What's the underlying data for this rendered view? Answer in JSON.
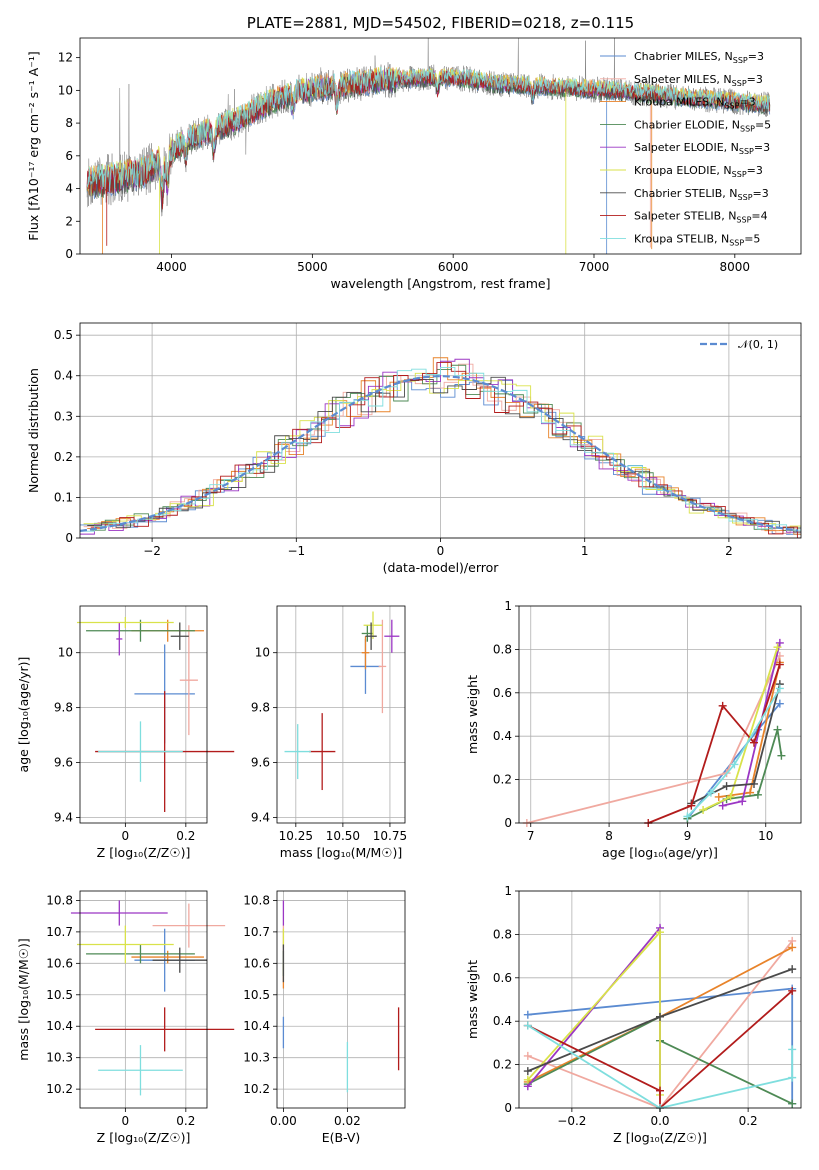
{
  "colors": {
    "Chabrier MILES": "#5b8bd1",
    "Salpeter MILES": "#f0a9a0",
    "Kroupa MILES": "#e8832a",
    "Chabrier ELODIE": "#4e8a55",
    "Salpeter ELODIE": "#9b36c4",
    "Kroupa ELODIE": "#d9e24a",
    "Chabrier STELIB": "#4a4a4a",
    "Salpeter STELIB": "#b21c1c",
    "Kroupa STELIB": "#7fdede",
    "data": "#808080",
    "gauss": "#5b8bd1"
  },
  "chart_data": [
    {
      "id": "spectrum",
      "type": "line",
      "title": "PLATE=2881, MJD=54502, FIBERID=0218, z=0.115",
      "xlabel": "wavelength [Angstrom, rest frame]",
      "ylabel": "Flux [fλ10⁻¹⁷ erg cm⁻² s⁻¹ A⁻¹]",
      "xlim": [
        3350,
        8470
      ],
      "ylim": [
        0,
        13.2
      ],
      "xticks": [
        4000,
        5000,
        6000,
        7000,
        8000
      ],
      "yticks": [
        0,
        2,
        4,
        6,
        8,
        10,
        12
      ],
      "grid": false,
      "legend_position": "upper-right",
      "continuum": [
        [
          3400,
          4.3
        ],
        [
          3600,
          4.6
        ],
        [
          3800,
          5.0
        ],
        [
          3950,
          5.8
        ],
        [
          4100,
          7.0
        ],
        [
          4300,
          7.6
        ],
        [
          4500,
          8.3
        ],
        [
          4700,
          9.3
        ],
        [
          4900,
          9.9
        ],
        [
          5100,
          10.2
        ],
        [
          5300,
          10.4
        ],
        [
          5500,
          10.6
        ],
        [
          5700,
          10.7
        ],
        [
          5900,
          10.8
        ],
        [
          6100,
          10.7
        ],
        [
          6300,
          10.4
        ],
        [
          6500,
          10.3
        ],
        [
          6700,
          10.2
        ],
        [
          6900,
          10.1
        ],
        [
          7100,
          10.0
        ],
        [
          7400,
          9.8
        ],
        [
          7700,
          9.5
        ],
        [
          8000,
          9.3
        ],
        [
          8250,
          9.1
        ]
      ],
      "series": [
        {
          "name": "Chabrier MILES",
          "nssp": "3"
        },
        {
          "name": "Salpeter MILES",
          "nssp": "3"
        },
        {
          "name": "Kroupa MILES",
          "nssp": "3"
        },
        {
          "name": "Chabrier ELODIE",
          "nssp": "5"
        },
        {
          "name": "Salpeter ELODIE",
          "nssp": "3"
        },
        {
          "name": "Kroupa ELODIE",
          "nssp": "3"
        },
        {
          "name": "Chabrier STELIB",
          "nssp": "3"
        },
        {
          "name": "Salpeter STELIB",
          "nssp": "4"
        },
        {
          "name": "Kroupa STELIB",
          "nssp": "5"
        }
      ]
    },
    {
      "id": "residuals",
      "type": "line",
      "xlabel": "(data-model)/error",
      "ylabel": "Normed distribution",
      "xlim": [
        -2.5,
        2.5
      ],
      "ylim": [
        0,
        0.53
      ],
      "xticks": [
        -2,
        -1,
        0,
        1,
        2
      ],
      "yticks": [
        0.0,
        0.1,
        0.2,
        0.3,
        0.4,
        0.5
      ],
      "grid": true,
      "legend_position": "upper-right",
      "legend_label": "𝒩(0, 1)",
      "bin_width": 0.1
    },
    {
      "id": "age-Z",
      "type": "scatter",
      "xlabel": "Z [log₁₀(Z/Z☉)]",
      "ylabel": "age  [log₁₀(age/yr)]",
      "xlim": [
        -0.15,
        0.27
      ],
      "ylim": [
        9.38,
        10.17
      ],
      "xticks": [
        0.0,
        0.2
      ],
      "yticks": [
        9.4,
        9.6,
        9.8,
        10.0
      ],
      "grid": true,
      "points": [
        {
          "series": "Chabrier MILES",
          "x": 0.13,
          "xerr": 0.1,
          "y": 9.85,
          "yerr": 0.18
        },
        {
          "series": "Salpeter MILES",
          "x": 0.21,
          "xerr": 0.03,
          "y": 9.9,
          "yerr": 0.2
        },
        {
          "series": "Kroupa MILES",
          "x": 0.14,
          "xerr": 0.12,
          "y": 10.08,
          "yerr": 0.04
        },
        {
          "series": "Chabrier ELODIE",
          "x": 0.05,
          "xerr": 0.18,
          "y": 10.08,
          "yerr": 0.04
        },
        {
          "series": "Salpeter ELODIE",
          "x": -0.02,
          "xerr": 0.01,
          "y": 10.05,
          "yerr": 0.06
        },
        {
          "series": "Kroupa ELODIE",
          "x": 0.0,
          "xerr": 0.16,
          "y": 10.11,
          "yerr": 0.02
        },
        {
          "series": "Chabrier STELIB",
          "x": 0.18,
          "xerr": 0.03,
          "y": 10.06,
          "yerr": 0.05
        },
        {
          "series": "Salpeter STELIB",
          "x": 0.13,
          "xerr": 0.23,
          "y": 9.64,
          "yerr": 0.22
        },
        {
          "series": "Kroupa STELIB",
          "x": 0.05,
          "xerr": 0.14,
          "y": 9.64,
          "yerr": 0.11
        }
      ]
    },
    {
      "id": "age-mass",
      "type": "scatter",
      "xlabel": "mass [log₁₀(M/M☉)]",
      "xlim": [
        10.15,
        10.83
      ],
      "ylim": [
        9.38,
        10.17
      ],
      "xticks": [
        10.25,
        10.5,
        10.75
      ],
      "xtick_labels": [
        "10.25",
        "10.50",
        "10.75"
      ],
      "yticks": [
        9.4,
        9.6,
        9.8,
        10.0
      ],
      "grid": true,
      "points": [
        {
          "series": "Chabrier MILES",
          "x": 10.62,
          "xerr": 0.08,
          "y": 9.95,
          "yerr": 0.1
        },
        {
          "series": "Salpeter MILES",
          "x": 10.71,
          "xerr": 0.02,
          "y": 9.95,
          "yerr": 0.17
        },
        {
          "series": "Kroupa MILES",
          "x": 10.62,
          "xerr": 0.02,
          "y": 10.0,
          "yerr": 0.06
        },
        {
          "series": "Chabrier ELODIE",
          "x": 10.63,
          "xerr": 0.03,
          "y": 10.07,
          "yerr": 0.03
        },
        {
          "series": "Salpeter ELODIE",
          "x": 10.76,
          "xerr": 0.04,
          "y": 10.06,
          "yerr": 0.06
        },
        {
          "series": "Kroupa ELODIE",
          "x": 10.66,
          "xerr": 0.05,
          "y": 10.1,
          "yerr": 0.05
        },
        {
          "series": "Chabrier STELIB",
          "x": 10.65,
          "xerr": 0.03,
          "y": 10.06,
          "yerr": 0.05
        },
        {
          "series": "Salpeter STELIB",
          "x": 10.39,
          "xerr": 0.07,
          "y": 9.64,
          "yerr": 0.14
        },
        {
          "series": "Kroupa STELIB",
          "x": 10.26,
          "xerr": 0.07,
          "y": 9.64,
          "yerr": 0.1
        }
      ]
    },
    {
      "id": "weight-age",
      "type": "line",
      "xlabel": "age  [log₁₀(age/yr)]",
      "ylabel": "mass weight",
      "xlim": [
        6.85,
        10.45
      ],
      "ylim": [
        0,
        1.0
      ],
      "xticks": [
        7,
        8,
        9,
        10
      ],
      "yticks": [
        0.0,
        0.2,
        0.4,
        0.6,
        0.8,
        1.0
      ],
      "grid": true,
      "series": [
        {
          "name": "Chabrier MILES",
          "x": [
            9.0,
            9.9,
            10.18
          ],
          "y": [
            0.02,
            0.43,
            0.55
          ]
        },
        {
          "name": "Salpeter MILES",
          "x": [
            6.95,
            9.5,
            10.18
          ],
          "y": [
            0.0,
            0.23,
            0.77
          ]
        },
        {
          "name": "Kroupa MILES",
          "x": [
            9.4,
            9.8,
            10.18
          ],
          "y": [
            0.12,
            0.14,
            0.74
          ]
        },
        {
          "name": "Chabrier ELODIE",
          "x": [
            9.0,
            9.5,
            9.9,
            10.15,
            10.2
          ],
          "y": [
            0.02,
            0.11,
            0.13,
            0.43,
            0.31
          ]
        },
        {
          "name": "Salpeter ELODIE",
          "x": [
            9.45,
            9.7,
            10.18
          ],
          "y": [
            0.08,
            0.1,
            0.83
          ]
        },
        {
          "name": "Kroupa ELODIE",
          "x": [
            9.2,
            9.55,
            10.15
          ],
          "y": [
            0.06,
            0.12,
            0.81
          ]
        },
        {
          "name": "Chabrier STELIB",
          "x": [
            9.05,
            9.5,
            9.85,
            10.18
          ],
          "y": [
            0.09,
            0.17,
            0.18,
            0.64
          ]
        },
        {
          "name": "Salpeter STELIB",
          "x": [
            8.5,
            9.05,
            9.45,
            9.85,
            10.18
          ],
          "y": [
            0.0,
            0.08,
            0.54,
            0.37,
            0.73
          ]
        },
        {
          "name": "Kroupa STELIB",
          "x": [
            9.0,
            9.3,
            9.6,
            10.18
          ],
          "y": [
            0.03,
            0.14,
            0.27,
            0.62
          ]
        }
      ]
    },
    {
      "id": "mass-Z",
      "type": "scatter",
      "xlabel": "Z [log₁₀(Z/Z☉)]",
      "ylabel": "mass [log₁₀(M/M☉)]",
      "xlim": [
        -0.15,
        0.27
      ],
      "ylim": [
        10.14,
        10.83
      ],
      "xticks": [
        0.0,
        0.2
      ],
      "yticks": [
        10.2,
        10.3,
        10.4,
        10.5,
        10.6,
        10.7,
        10.8
      ],
      "grid": true,
      "points": [
        {
          "series": "Chabrier MILES",
          "x": 0.13,
          "xerr": 0.1,
          "y": 10.61,
          "yerr": 0.1
        },
        {
          "series": "Salpeter MILES",
          "x": 0.21,
          "xerr": 0.12,
          "y": 10.72,
          "yerr": 0.07
        },
        {
          "series": "Kroupa MILES",
          "x": 0.14,
          "xerr": 0.12,
          "y": 10.62,
          "yerr": 0.02
        },
        {
          "series": "Chabrier ELODIE",
          "x": 0.05,
          "xerr": 0.18,
          "y": 10.63,
          "yerr": 0.03
        },
        {
          "series": "Salpeter ELODIE",
          "x": -0.02,
          "xerr": 0.16,
          "y": 10.76,
          "yerr": 0.04
        },
        {
          "series": "Kroupa ELODIE",
          "x": 0.0,
          "xerr": 0.16,
          "y": 10.66,
          "yerr": 0.06
        },
        {
          "series": "Chabrier STELIB",
          "x": 0.18,
          "xerr": 0.09,
          "y": 10.61,
          "yerr": 0.04
        },
        {
          "series": "Salpeter STELIB",
          "x": 0.13,
          "xerr": 0.23,
          "y": 10.39,
          "yerr": 0.07
        },
        {
          "series": "Kroupa STELIB",
          "x": 0.05,
          "xerr": 0.14,
          "y": 10.26,
          "yerr": 0.08
        }
      ]
    },
    {
      "id": "mass-ebv",
      "type": "scatter",
      "xlabel": "E(B-V)",
      "xlim": [
        -0.002,
        0.038
      ],
      "ylim": [
        10.14,
        10.83
      ],
      "xticks": [
        0.0,
        0.02
      ],
      "xtick_labels": [
        "0.00",
        "0.02"
      ],
      "yticks": [
        10.2,
        10.3,
        10.4,
        10.5,
        10.6,
        10.7,
        10.8
      ],
      "grid": true,
      "points": [
        {
          "series": "Chabrier MILES",
          "x": 0.0,
          "y": 10.38,
          "yerr": 0.05
        },
        {
          "series": "Salpeter MILES",
          "x": 0.0,
          "y": 10.66,
          "yerr": 0.06
        },
        {
          "series": "Kroupa MILES",
          "x": 0.0,
          "y": 10.56,
          "yerr": 0.04
        },
        {
          "series": "Chabrier ELODIE",
          "x": 0.0,
          "y": 10.6,
          "yerr": 0.04
        },
        {
          "series": "Salpeter ELODIE",
          "x": 0.0,
          "y": 10.76,
          "yerr": 0.04
        },
        {
          "series": "Kroupa ELODIE",
          "x": 0.0,
          "y": 10.68,
          "yerr": 0.03
        },
        {
          "series": "Chabrier STELIB",
          "x": 0.0,
          "y": 10.6,
          "yerr": 0.06
        },
        {
          "series": "Salpeter STELIB",
          "x": 0.036,
          "y": 10.36,
          "yerr": 0.1
        },
        {
          "series": "Kroupa STELIB",
          "x": 0.02,
          "y": 10.27,
          "yerr": 0.08
        }
      ]
    },
    {
      "id": "weight-Z",
      "type": "line",
      "xlabel": "Z [log₁₀(Z/Z☉)]",
      "ylabel": "mass weight",
      "xlim": [
        -0.32,
        0.32
      ],
      "ylim": [
        0,
        1.0
      ],
      "xticks": [
        -0.2,
        0.0,
        0.2
      ],
      "xtick_labels": [
        "−0.2",
        "0.0",
        "0.2"
      ],
      "yticks": [
        0.0,
        0.2,
        0.4,
        0.6,
        0.8,
        1.0
      ],
      "grid": true,
      "series": [
        {
          "name": "Chabrier MILES",
          "x": [
            -0.3,
            0.3,
            0.3
          ],
          "y": [
            0.43,
            0.55,
            0.02
          ]
        },
        {
          "name": "Salpeter MILES",
          "x": [
            -0.3,
            0.0,
            0.3
          ],
          "y": [
            0.24,
            0.0,
            0.77
          ]
        },
        {
          "name": "Kroupa MILES",
          "x": [
            -0.3,
            0.0,
            0.3
          ],
          "y": [
            0.12,
            0.42,
            0.74
          ]
        },
        {
          "name": "Chabrier ELODIE",
          "x": [
            -0.3,
            0.0,
            0.0,
            0.3
          ],
          "y": [
            0.11,
            0.42,
            0.31,
            0.02
          ]
        },
        {
          "name": "Salpeter ELODIE",
          "x": [
            -0.3,
            0.0,
            0.0
          ],
          "y": [
            0.1,
            0.83,
            0.08
          ]
        },
        {
          "name": "Kroupa ELODIE",
          "x": [
            -0.3,
            0.0,
            0.0
          ],
          "y": [
            0.13,
            0.81,
            0.06
          ]
        },
        {
          "name": "Chabrier STELIB",
          "x": [
            -0.3,
            0.0,
            0.3
          ],
          "y": [
            0.17,
            0.42,
            0.64
          ]
        },
        {
          "name": "Salpeter STELIB",
          "x": [
            -0.3,
            0.0,
            0.0,
            0.3
          ],
          "y": [
            0.38,
            0.08,
            0.0,
            0.54
          ]
        },
        {
          "name": "Kroupa STELIB",
          "x": [
            -0.3,
            0.0,
            0.3,
            0.3
          ],
          "y": [
            0.38,
            0.0,
            0.14,
            0.27
          ]
        }
      ]
    }
  ]
}
